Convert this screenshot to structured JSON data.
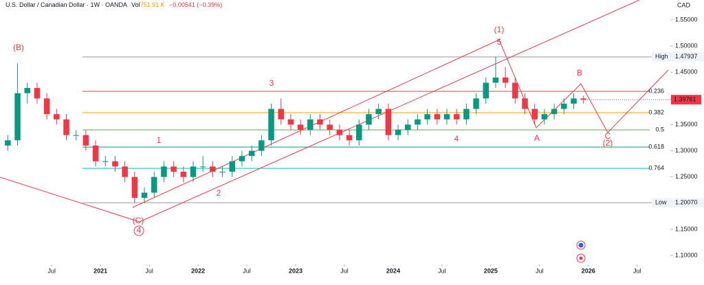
{
  "chart_data": {
    "type": "candlestick",
    "title": "U.S. Dollar / Canadian Dollar · 1W · OANDA",
    "volume_label": "Vol",
    "volume": "751.91 K",
    "change": "−0.00541 (−0.39%)",
    "currency": "CAD",
    "up_color": "#089981",
    "down_color": "#f23645",
    "x": [
      2020.05,
      2020.15,
      2020.25,
      2020.35,
      2020.45,
      2020.55,
      2020.65,
      2020.75,
      2020.85,
      2020.95,
      2021.05,
      2021.15,
      2021.25,
      2021.35,
      2021.45,
      2021.55,
      2021.65,
      2021.75,
      2021.85,
      2021.95,
      2022.05,
      2022.15,
      2022.25,
      2022.35,
      2022.45,
      2022.55,
      2022.65,
      2022.75,
      2022.85,
      2022.95,
      2023.05,
      2023.15,
      2023.25,
      2023.35,
      2023.45,
      2023.55,
      2023.65,
      2023.75,
      2023.85,
      2023.95,
      2024.05,
      2024.15,
      2024.25,
      2024.35,
      2024.45,
      2024.55,
      2024.65,
      2024.75,
      2024.85,
      2024.95,
      2025.05,
      2025.15,
      2025.25,
      2025.35,
      2025.45,
      2025.55,
      2025.65,
      2025.75,
      2025.85,
      2025.95
    ],
    "open": [
      1.31,
      1.32,
      1.41,
      1.42,
      1.4,
      1.37,
      1.36,
      1.33,
      1.33,
      1.31,
      1.28,
      1.28,
      1.27,
      1.25,
      1.21,
      1.22,
      1.25,
      1.27,
      1.26,
      1.25,
      1.27,
      1.27,
      1.26,
      1.26,
      1.28,
      1.29,
      1.3,
      1.32,
      1.38,
      1.36,
      1.35,
      1.34,
      1.36,
      1.35,
      1.34,
      1.33,
      1.32,
      1.35,
      1.37,
      1.38,
      1.33,
      1.34,
      1.35,
      1.36,
      1.37,
      1.36,
      1.37,
      1.36,
      1.38,
      1.4,
      1.43,
      1.44,
      1.43,
      1.4,
      1.38,
      1.36,
      1.37,
      1.38,
      1.39,
      1.4
    ],
    "high": [
      1.33,
      1.467,
      1.43,
      1.43,
      1.41,
      1.38,
      1.37,
      1.34,
      1.34,
      1.32,
      1.29,
      1.29,
      1.28,
      1.26,
      1.23,
      1.26,
      1.28,
      1.28,
      1.27,
      1.28,
      1.29,
      1.28,
      1.27,
      1.29,
      1.3,
      1.31,
      1.33,
      1.39,
      1.4,
      1.37,
      1.36,
      1.37,
      1.37,
      1.36,
      1.35,
      1.34,
      1.36,
      1.38,
      1.39,
      1.39,
      1.35,
      1.36,
      1.37,
      1.38,
      1.38,
      1.38,
      1.38,
      1.39,
      1.41,
      1.44,
      1.4794,
      1.46,
      1.44,
      1.41,
      1.39,
      1.38,
      1.39,
      1.4,
      1.41,
      1.405
    ],
    "low": [
      1.3,
      1.31,
      1.39,
      1.39,
      1.36,
      1.35,
      1.32,
      1.32,
      1.3,
      1.27,
      1.27,
      1.26,
      1.24,
      1.2007,
      1.2,
      1.21,
      1.24,
      1.25,
      1.24,
      1.24,
      1.26,
      1.25,
      1.25,
      1.25,
      1.27,
      1.28,
      1.29,
      1.31,
      1.35,
      1.34,
      1.33,
      1.33,
      1.34,
      1.33,
      1.32,
      1.31,
      1.31,
      1.34,
      1.36,
      1.32,
      1.32,
      1.33,
      1.34,
      1.35,
      1.35,
      1.35,
      1.35,
      1.35,
      1.37,
      1.39,
      1.42,
      1.42,
      1.39,
      1.37,
      1.35,
      1.35,
      1.36,
      1.37,
      1.38,
      1.39
    ],
    "close": [
      1.32,
      1.41,
      1.42,
      1.4,
      1.37,
      1.36,
      1.33,
      1.33,
      1.31,
      1.28,
      1.28,
      1.27,
      1.25,
      1.21,
      1.22,
      1.25,
      1.27,
      1.26,
      1.25,
      1.27,
      1.27,
      1.26,
      1.26,
      1.28,
      1.29,
      1.3,
      1.32,
      1.38,
      1.36,
      1.35,
      1.34,
      1.36,
      1.35,
      1.34,
      1.33,
      1.32,
      1.35,
      1.37,
      1.38,
      1.33,
      1.34,
      1.35,
      1.36,
      1.37,
      1.36,
      1.37,
      1.36,
      1.38,
      1.4,
      1.43,
      1.44,
      1.43,
      1.4,
      1.38,
      1.36,
      1.37,
      1.38,
      1.39,
      1.4,
      1.3976
    ],
    "xlim": [
      2019.97,
      2026.84
    ],
    "xticks": [
      {
        "value": 2020.5,
        "label": "Jul"
      },
      2021,
      {
        "value": 2021.5,
        "label": "Jul"
      },
      2022,
      {
        "value": 2022.5,
        "label": "Jul"
      },
      2023,
      {
        "value": 2023.5,
        "label": "Jul"
      },
      2024,
      {
        "value": 2024.5,
        "label": "Jul"
      },
      2025,
      {
        "value": 2025.5,
        "label": "Jul"
      },
      2026,
      {
        "value": 2026.5,
        "label": "Jul"
      }
    ],
    "ylim": [
      1.083,
      1.588
    ],
    "yticks": [
      {
        "value": 1.1,
        "label": "1.10000"
      },
      {
        "value": 1.15,
        "label": "1.15000"
      },
      {
        "value": 1.2,
        "label": "1.20000"
      },
      {
        "value": 1.25,
        "label": "1.25000"
      },
      {
        "value": 1.3,
        "label": "1.30000"
      },
      {
        "value": 1.35,
        "label": "1.35000"
      },
      {
        "value": 1.4,
        "label": "1.40000"
      },
      {
        "value": 1.45,
        "label": "1.45000"
      },
      {
        "value": 1.5,
        "label": "1.50000"
      },
      {
        "value": 1.55,
        "label": "1.55000"
      }
    ],
    "levels": [
      {
        "name": "High",
        "value": 1.47937,
        "value_label": "1.47937",
        "color": "#9598a1"
      },
      {
        "name": "Low",
        "value": 1.2007,
        "value_label": "1.20070",
        "color": "#9598a1"
      }
    ],
    "fib": [
      {
        "label": "0.236",
        "value": 1.4136,
        "color": "#f23645"
      },
      {
        "label": "0.382",
        "value": 1.3729,
        "color": "#ff9800"
      },
      {
        "label": "0.5",
        "value": 1.34,
        "color": "#4caf50"
      },
      {
        "label": "0.618",
        "value": 1.3071,
        "color": "#089981"
      },
      {
        "label": "0.764",
        "value": 1.2665,
        "color": "#00bcd4"
      }
    ],
    "last": {
      "value": 1.39761,
      "label": "1.39761",
      "color": "#f23645"
    },
    "annotations": [
      "(B)",
      "1",
      "2",
      "3",
      "4",
      "(1)",
      "5",
      "A",
      "B",
      "C",
      "(2)",
      "(C)",
      "4"
    ]
  }
}
